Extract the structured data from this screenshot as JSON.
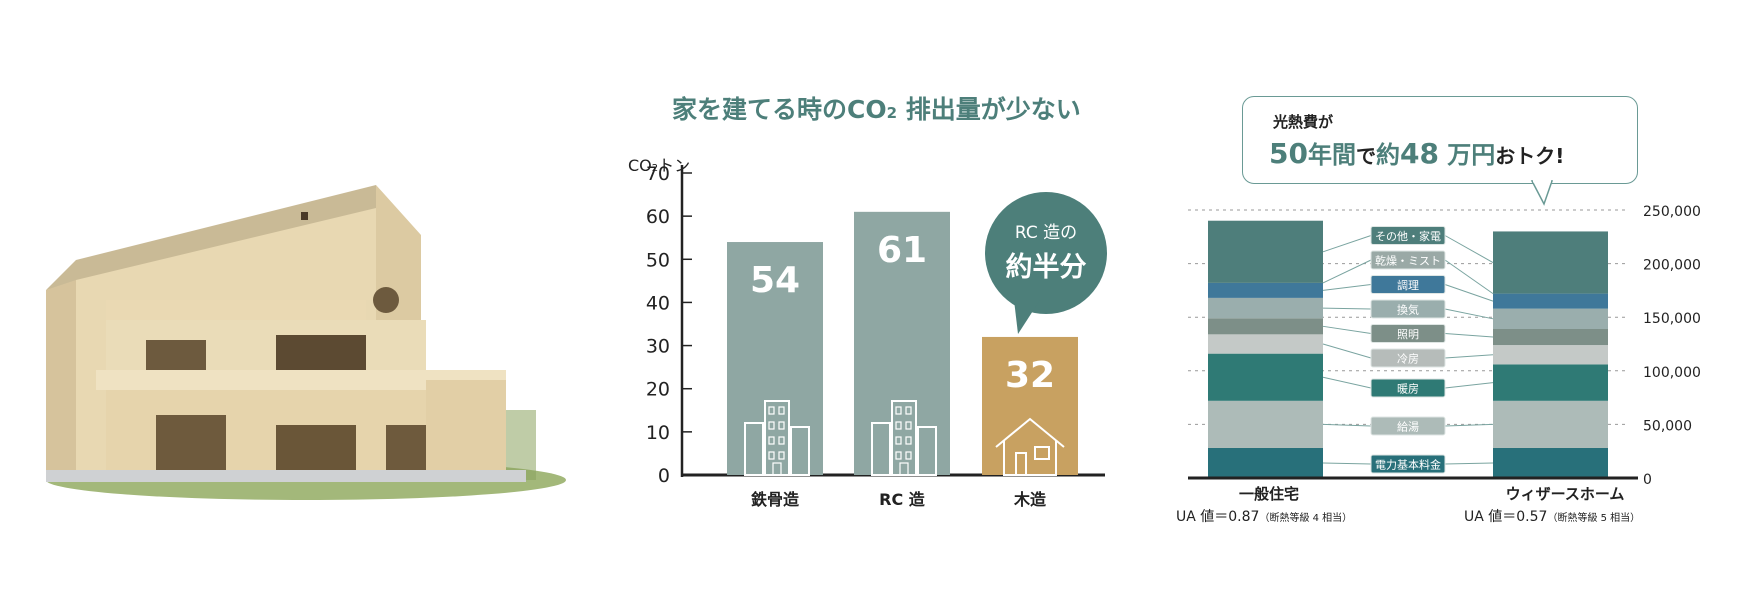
{
  "co2": {
    "title": "家を建てる時のCO",
    "title_sub": "2",
    "title_end": " 排出量が少ない",
    "unit_prefix": "CO",
    "unit_sub": "2",
    "unit_suffix": "トン",
    "bubble_line1": "RC 造の",
    "bubble_line2": "約半分"
  },
  "cost": {
    "callout_line1": "光熱費が",
    "callout_num1": "50",
    "callout_txt1": "年間",
    "callout_txt2": "で",
    "callout_txt3": "約",
    "callout_num2": "48",
    "callout_txt4": " 万円",
    "callout_txt5": "おトク!",
    "left_name": "一般住宅",
    "left_ua": "UA 値＝0.87",
    "left_note": "（断熱等級 4 相当）",
    "right_name": "ウィザースホーム",
    "right_ua": "UA 値＝0.57",
    "right_note": "（断熱等級 5 相当）"
  },
  "colors": {
    "accent_teal": "#4d7f7a",
    "bar_gray": "#8fa7a3",
    "bar_wood": "#c8a161"
  },
  "chart_data": [
    {
      "type": "bar",
      "title": "家を建てる時のCO2 排出量が少ない",
      "ylabel": "CO2トン",
      "categories": [
        "鉄骨造",
        "RC 造",
        "木造"
      ],
      "values": [
        54,
        61,
        32
      ],
      "value_labels": [
        "54",
        "61",
        "32"
      ],
      "ylim": [
        0,
        70
      ],
      "yticks": [
        "0",
        "10",
        "20",
        "30",
        "40",
        "50",
        "60",
        "70"
      ],
      "icons": [
        "building-icon",
        "building-icon",
        "house-icon"
      ],
      "annotation": "RC 造の 約半分"
    },
    {
      "type": "bar",
      "stacked": true,
      "categories": [
        "一般住宅",
        "ウィザースホーム"
      ],
      "ylim": [
        0,
        250000
      ],
      "yticks": [
        "0",
        "50,000",
        "100,000",
        "150,000",
        "200,000",
        "250,000"
      ],
      "series": [
        {
          "name": "電力基本料金",
          "values": [
            28000,
            28000
          ],
          "color": "#28707a"
        },
        {
          "name": "給湯",
          "values": [
            44000,
            44000
          ],
          "color": "#adbbb8"
        },
        {
          "name": "暖房",
          "values": [
            44000,
            34000
          ],
          "color": "#2f7a75"
        },
        {
          "name": "冷房",
          "values": [
            18000,
            18000
          ],
          "color": "#c4c9c7"
        },
        {
          "name": "照明",
          "values": [
            15000,
            15000
          ],
          "color": "#7d8f88"
        },
        {
          "name": "換気",
          "values": [
            19000,
            19000
          ],
          "color": "#9aaead"
        },
        {
          "name": "調理",
          "values": [
            14000,
            14000
          ],
          "color": "#3f789a"
        },
        {
          "name": "乾燥・ミスト",
          "values": [
            0,
            0
          ],
          "color": "#9aa9a6"
        },
        {
          "name": "その他・家電",
          "values": [
            58000,
            58000
          ],
          "color": "#4e7e7b"
        }
      ]
    }
  ]
}
